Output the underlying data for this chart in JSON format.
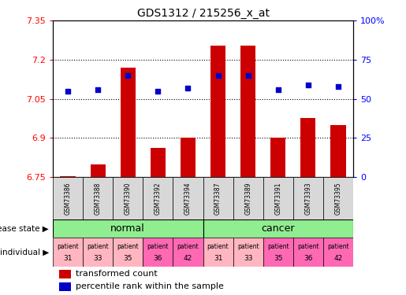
{
  "title": "GDS1312 / 215256_x_at",
  "samples": [
    "GSM73386",
    "GSM73388",
    "GSM73390",
    "GSM73392",
    "GSM73394",
    "GSM73387",
    "GSM73389",
    "GSM73391",
    "GSM73393",
    "GSM73395"
  ],
  "red_values": [
    6.752,
    6.797,
    7.17,
    6.863,
    6.9,
    7.255,
    7.255,
    6.9,
    6.975,
    6.95
  ],
  "blue_values": [
    55,
    56,
    65,
    55,
    57,
    65,
    65,
    56,
    59,
    58
  ],
  "ylim_left": [
    6.75,
    7.35
  ],
  "ylim_right": [
    0,
    100
  ],
  "yticks_left": [
    6.75,
    6.9,
    7.05,
    7.2,
    7.35
  ],
  "yticks_right": [
    0,
    25,
    50,
    75,
    100
  ],
  "ytick_labels_left": [
    "6.75",
    "6.9",
    "7.05",
    "7.2",
    "7.35"
  ],
  "ytick_labels_right": [
    "0",
    "25",
    "50",
    "75",
    "100%"
  ],
  "bar_color": "#CC0000",
  "dot_color": "#0000CC",
  "bar_baseline": 6.75,
  "bar_width": 0.5,
  "normal_color": "#90EE90",
  "cancer_color": "#90EE90",
  "indiv_colors": [
    "#FFB6C1",
    "#FFB6C1",
    "#FFB6C1",
    "#FF69B4",
    "#FF69B4",
    "#FFB6C1",
    "#FFB6C1",
    "#FF69B4",
    "#FF69B4",
    "#FF69B4"
  ],
  "indiv_labels_top": [
    "patient",
    "patient",
    "patient",
    "patient",
    "patient",
    "patient",
    "patient",
    "patient",
    "patient",
    "patient"
  ],
  "indiv_labels_num": [
    "31",
    "33",
    "35",
    "36",
    "42",
    "31",
    "33",
    "35",
    "36",
    "42"
  ]
}
